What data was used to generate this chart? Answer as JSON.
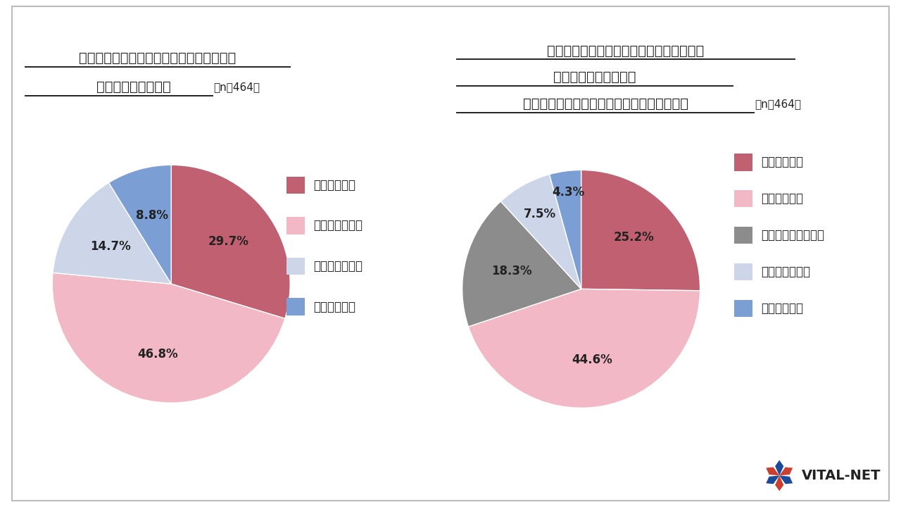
{
  "chart1": {
    "title_line1": "育休中、職場とコミュニケーションを取る",
    "title_line2": "機会はありましたか",
    "title_n": "（n＝464）",
    "values": [
      29.7,
      46.8,
      14.7,
      8.8
    ],
    "pct_labels": [
      "29.7%",
      "46.8%",
      "14.7%",
      "8.8%"
    ],
    "colors": [
      "#c06070",
      "#f2b8c5",
      "#cdd5e8",
      "#7b9fd4"
    ],
    "legend_labels": [
      "十分にあった",
      "まあまああった",
      "あまりなかった",
      "全くなかった"
    ]
  },
  "chart2": {
    "title_line1": "育休中、職場の様子や復帰について職場と",
    "title_line2": "コミュニケーションの",
    "title_line3": "機会が（もっと）あったらよいと思いますか",
    "title_n": "（n＝464）",
    "values": [
      25.2,
      44.6,
      18.3,
      7.5,
      4.3
    ],
    "pct_labels": [
      "25.2%",
      "44.6%",
      "18.3%",
      "7.5%",
      "4.3%"
    ],
    "colors": [
      "#c06070",
      "#f2b8c5",
      "#8c8c8c",
      "#cdd5e8",
      "#7b9fd4"
    ],
    "legend_labels": [
      "強くそう思う",
      "ややそう思う",
      "どちらともいえない",
      "あまり思わない",
      "全く思わない"
    ]
  },
  "bg_color": "#ffffff",
  "border_color": "#bbbbbb",
  "text_color": "#222222",
  "title_fontsize": 14,
  "label_fontsize": 12,
  "legend_fontsize": 12,
  "n_fontsize": 11,
  "logo_text": "VITAL-NET",
  "logo_color": "#222222",
  "logo_star_colors": [
    "#c94030",
    "#1a4a9a"
  ]
}
